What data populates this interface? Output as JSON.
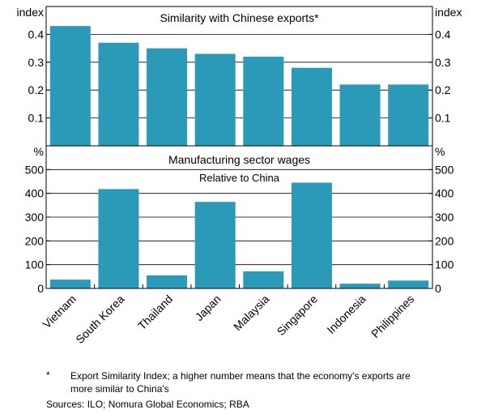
{
  "chart_data": [
    {
      "type": "bar",
      "title": "Similarity with Chinese exports*",
      "unit_left": "index",
      "unit_right": "index",
      "categories": [
        "Vietnam",
        "South Korea",
        "Thailand",
        "Japan",
        "Malaysia",
        "Singapore",
        "Indonesia",
        "Philippines"
      ],
      "values": [
        0.43,
        0.37,
        0.35,
        0.33,
        0.32,
        0.28,
        0.22,
        0.22
      ],
      "ylim": [
        0,
        0.5
      ],
      "ticks": [
        0.1,
        0.2,
        0.3,
        0.4
      ],
      "tick_labels": [
        "0.1",
        "0.2",
        "0.3",
        "0.4"
      ],
      "color": "#2b9ab8"
    },
    {
      "type": "bar",
      "title": "Manufacturing sector wages",
      "subtitle": "Relative to China",
      "unit_left": "%",
      "unit_right": "%",
      "categories": [
        "Vietnam",
        "South Korea",
        "Thailand",
        "Japan",
        "Malaysia",
        "Singapore",
        "Indonesia",
        "Philippines"
      ],
      "values": [
        37,
        418,
        55,
        364,
        72,
        445,
        20,
        33
      ],
      "ylim": [
        0,
        600
      ],
      "ticks": [
        0,
        100,
        200,
        300,
        400,
        500
      ],
      "tick_labels": [
        "0",
        "100",
        "200",
        "300",
        "400",
        "500"
      ],
      "color": "#2b9ab8"
    }
  ],
  "footnote": {
    "marker": "*",
    "text": "Export Similarity Index; a higher number means that the economy's exports are more similar to China's"
  },
  "sources": "Sources: ILO; Nomura Global Economics; RBA"
}
